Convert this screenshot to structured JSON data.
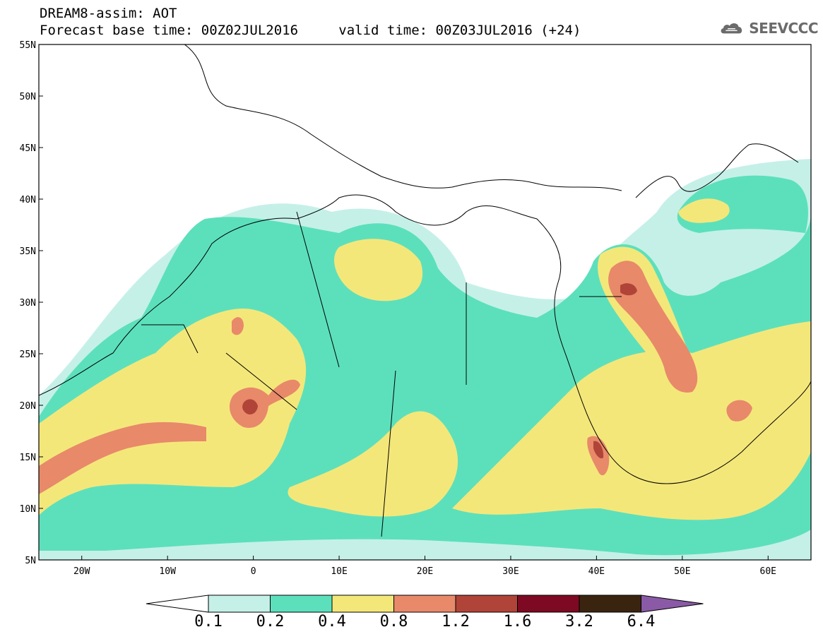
{
  "title": {
    "line1": "DREAM8-assim: AOT",
    "base_label": "Forecast base time: 00Z02JUL2016",
    "valid_label": "valid time: 00Z03JUL2016 (+24)"
  },
  "logo": {
    "text": "SEEVCCC",
    "icon": "cloud-icon"
  },
  "axes": {
    "lat_labels": [
      "55N",
      "50N",
      "45N",
      "40N",
      "35N",
      "30N",
      "25N",
      "20N",
      "15N",
      "10N",
      "5N"
    ],
    "lon_labels": [
      "20W",
      "10W",
      "0",
      "10E",
      "20E",
      "30E",
      "40E",
      "50E",
      "60E"
    ],
    "lon_range": [
      -25,
      65
    ],
    "lat_range": [
      5,
      55
    ]
  },
  "colorbar": {
    "labels": [
      "0.1",
      "0.2",
      "0.4",
      "0.8",
      "1.2",
      "1.6",
      "3.2",
      "6.4"
    ],
    "colors": [
      "#ffffff",
      "#c5f0e8",
      "#5ce0bc",
      "#f4e77a",
      "#e8896a",
      "#b04438",
      "#7d0a22",
      "#3a2410",
      "#8a5aa6"
    ]
  }
}
